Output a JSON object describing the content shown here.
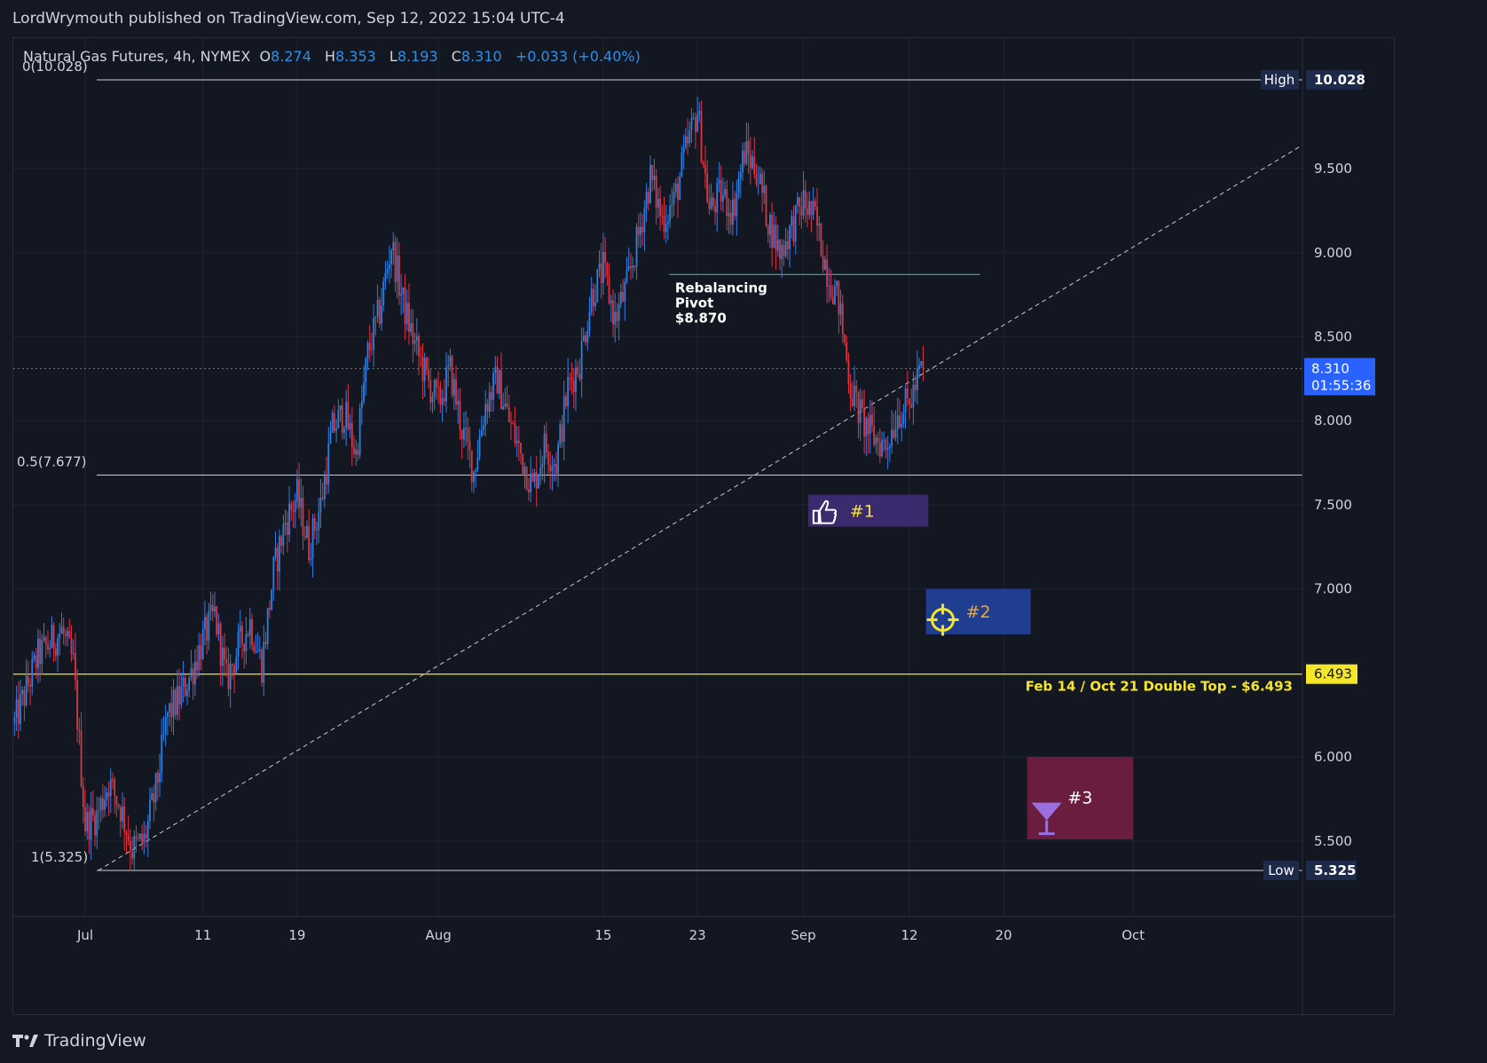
{
  "header": {
    "publisher_line": "LordWrymouth published on TradingView.com, Sep 12, 2022 15:04 UTC-4"
  },
  "legend": {
    "symbol": "Natural Gas Futures, 4h, NYMEX",
    "o_label": "O",
    "o_value": "8.274",
    "h_label": "H",
    "h_value": "8.353",
    "l_label": "L",
    "l_value": "8.193",
    "c_label": "C",
    "c_value": "8.310",
    "change": "+0.033 (+0.40%)"
  },
  "footer": {
    "brand": "TradingView",
    "logo_icon": "tradingview-logo-icon"
  },
  "colors": {
    "background": "#131722",
    "up": "#2f7fe0",
    "down": "#e0343f",
    "grid": "#1f2433",
    "yellow": "#f5e629",
    "teal": "#26a69a"
  },
  "chart_data": {
    "type": "candlestick",
    "ylim": [
      5.0,
      10.25
    ],
    "y_ticks": [
      "10.028",
      "9.500",
      "9.000",
      "8.500",
      "8.000",
      "7.500",
      "7.000",
      "6.493",
      "6.000",
      "5.500",
      "5.325"
    ],
    "x_range_days": [
      0,
      105
    ],
    "x_ticks": [
      {
        "day": 3,
        "label": "Jul"
      },
      {
        "day": 13,
        "label": "11"
      },
      {
        "day": 21,
        "label": "19"
      },
      {
        "day": 33,
        "label": "Aug"
      },
      {
        "day": 47,
        "label": "15"
      },
      {
        "day": 55,
        "label": "23"
      },
      {
        "day": 64,
        "label": "Sep"
      },
      {
        "day": 73,
        "label": "12"
      },
      {
        "day": 81,
        "label": "20"
      },
      {
        "day": 92,
        "label": "Oct"
      }
    ],
    "last_price": "8.310",
    "countdown": "01:55:36",
    "close_path": [
      [
        -3,
        6.2
      ],
      [
        -1,
        6.6
      ],
      [
        1,
        6.75
      ],
      [
        2,
        6.55
      ],
      [
        3,
        5.6
      ],
      [
        4,
        5.65
      ],
      [
        5,
        5.85
      ],
      [
        6,
        5.7
      ],
      [
        7,
        5.45
      ],
      [
        8,
        5.5
      ],
      [
        9,
        5.8
      ],
      [
        10,
        6.25
      ],
      [
        11,
        6.35
      ],
      [
        12,
        6.5
      ],
      [
        13,
        6.7
      ],
      [
        14,
        6.85
      ],
      [
        15,
        6.45
      ],
      [
        16,
        6.65
      ],
      [
        17,
        6.8
      ],
      [
        18,
        6.55
      ],
      [
        19,
        7.1
      ],
      [
        20,
        7.4
      ],
      [
        21,
        7.55
      ],
      [
        22,
        7.25
      ],
      [
        23,
        7.5
      ],
      [
        24,
        7.95
      ],
      [
        25,
        8.05
      ],
      [
        26,
        7.8
      ],
      [
        27,
        8.4
      ],
      [
        28,
        8.65
      ],
      [
        29,
        9.05
      ],
      [
        30,
        8.7
      ],
      [
        31,
        8.45
      ],
      [
        32,
        8.25
      ],
      [
        33,
        8.1
      ],
      [
        34,
        8.3
      ],
      [
        35,
        7.95
      ],
      [
        36,
        7.7
      ],
      [
        37,
        8.1
      ],
      [
        38,
        8.25
      ],
      [
        39,
        8.0
      ],
      [
        40,
        7.8
      ],
      [
        41,
        7.6
      ],
      [
        42,
        7.85
      ],
      [
        43,
        7.75
      ],
      [
        44,
        8.2
      ],
      [
        45,
        8.35
      ],
      [
        46,
        8.75
      ],
      [
        47,
        8.9
      ],
      [
        48,
        8.6
      ],
      [
        49,
        8.8
      ],
      [
        50,
        9.1
      ],
      [
        51,
        9.45
      ],
      [
        52,
        9.2
      ],
      [
        53,
        9.3
      ],
      [
        54,
        9.6
      ],
      [
        55,
        9.85
      ],
      [
        56,
        9.25
      ],
      [
        57,
        9.35
      ],
      [
        58,
        9.25
      ],
      [
        59,
        9.6
      ],
      [
        60,
        9.5
      ],
      [
        61,
        9.2
      ],
      [
        62,
        9.0
      ],
      [
        63,
        9.15
      ],
      [
        64,
        9.3
      ],
      [
        65,
        9.2
      ],
      [
        66,
        8.9
      ],
      [
        67,
        8.7
      ],
      [
        68,
        8.2
      ],
      [
        69,
        8.0
      ],
      [
        70,
        7.9
      ],
      [
        71,
        7.85
      ],
      [
        72,
        8.05
      ],
      [
        73,
        8.1
      ],
      [
        74,
        8.31
      ]
    ],
    "annotations": {
      "high_label": "High",
      "high_value": "10.028",
      "high_fib": "0(10.028)",
      "low_label": "Low",
      "low_value": "5.325",
      "low_fib": "1(5.325)",
      "mid_fib": "0.5(7.677)",
      "pivot_line1": "Rebalancing",
      "pivot_line2": "Pivot",
      "pivot_price": "$8.870",
      "double_top_text": "Feb 14 / Oct 21 Double Top - $6.493",
      "double_top_value": "6.493",
      "target1": "#1",
      "target1_icon": "thumbs-up-icon",
      "target2": "#2",
      "target2_icon": "crosshair-icon",
      "target3": "#3",
      "target3_icon": "cocktail-glass-icon"
    }
  }
}
